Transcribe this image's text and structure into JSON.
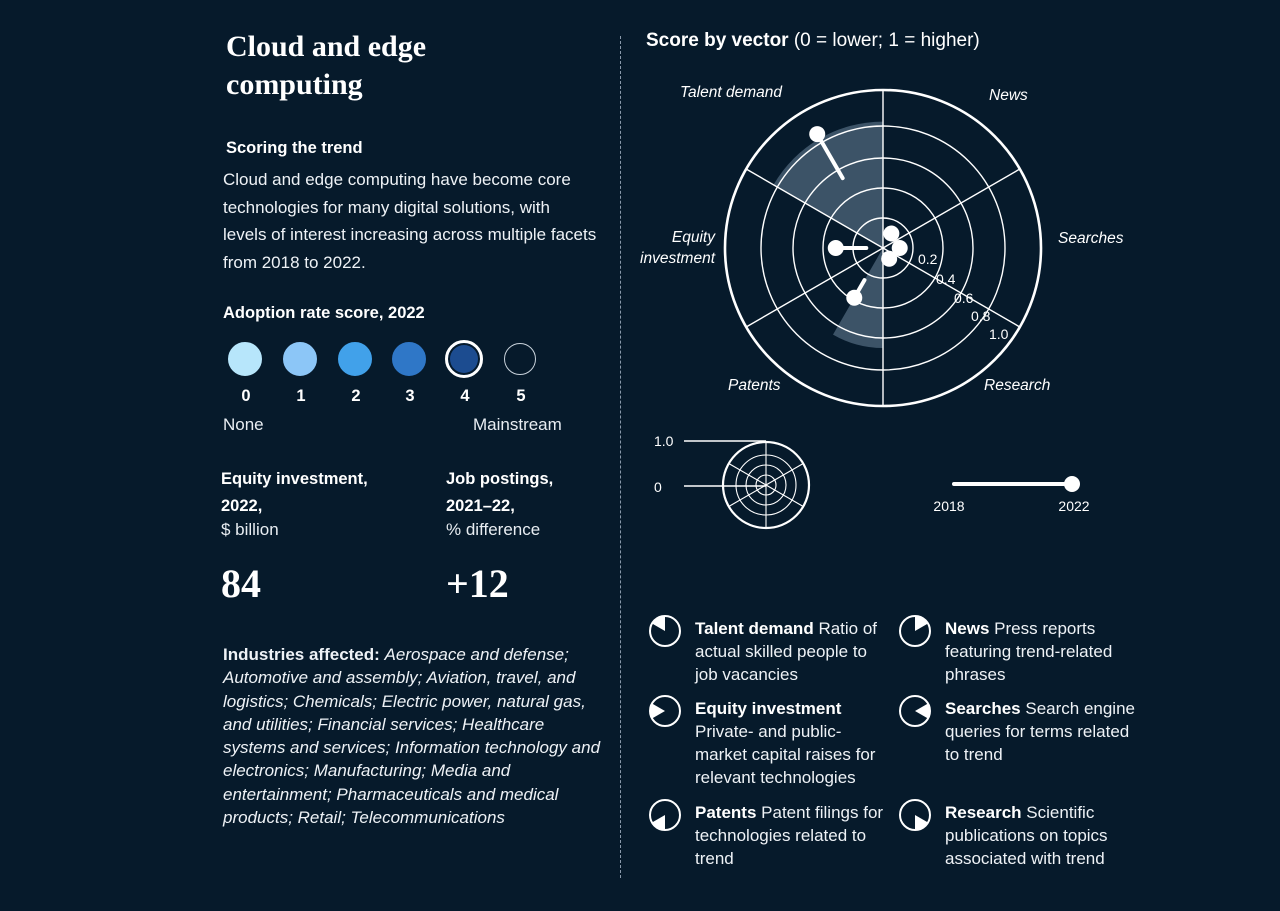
{
  "left": {
    "title": "Cloud and edge computing",
    "scoring_heading": "Scoring the trend",
    "intro": "Cloud and edge computing have become core technologies for many digital solutions, with levels of interest increasing across multiple facets from 2018 to 2022.",
    "adoption": {
      "title": "Adoption rate score, 2022",
      "scores": [
        "0",
        "1",
        "2",
        "3",
        "4",
        "5"
      ],
      "colors": [
        "#b7e6fb",
        "#8cc6f7",
        "#41a1ea",
        "#2f77c7",
        "#1c4c90",
        "transparent"
      ],
      "selected": 4,
      "label_low": "None",
      "label_high": "Mainstream"
    },
    "equity": {
      "title_line1": "Equity investment,",
      "title_line2": "2022,",
      "unit": "$ billion",
      "value": "84"
    },
    "jobs": {
      "title_line1": "Job postings,",
      "title_line2": "2021–22,",
      "unit": "% difference",
      "value": "+12"
    },
    "industries": {
      "label": "Industries affected:",
      "text": "Aerospace and defense; Automotive and assembly; Aviation, travel, and logistics; Chemicals; Electric power, natural gas, and utilities; Financial services; Healthcare systems and services; Information technology and electronics; Manufacturing; Media and entertainment; Pharmaceuticals and medical products; Retail; Telecommunications"
    }
  },
  "chart_data": {
    "type": "radar",
    "title": "Score by vector",
    "title_note": "(0 = lower; 1 = higher)",
    "axes": [
      "Talent demand",
      "News",
      "Searches",
      "Research",
      "Patents",
      "Equity investment"
    ],
    "axis_labels_display": {
      "talent": "Talent demand",
      "news": "News",
      "searches": "Searches",
      "research": "Research",
      "patents": "Patents",
      "equity_l1": "Equity",
      "equity_l2": "investment"
    },
    "ring_labels": [
      "0.2",
      "0.4",
      "0.6",
      "0.8",
      "1.0"
    ],
    "range": [
      0,
      1
    ],
    "series": [
      {
        "name": "2018",
        "values": [
          0.5,
          0.04,
          0.04,
          0.03,
          0.2,
          0.06
        ]
      },
      {
        "name": "2022",
        "values": [
          0.85,
          0.06,
          0.06,
          0.03,
          0.34,
          0.27
        ]
      }
    ],
    "highlighted_sector": "Talent demand",
    "highlight_value": 1.0,
    "key": {
      "scale_max": "1.0",
      "scale_min": "0",
      "year_start": "2018",
      "year_end": "2022"
    }
  },
  "legend": [
    {
      "name": "Talent demand",
      "desc": "Ratio of actual skilled people to job vacancies"
    },
    {
      "name": "News",
      "desc": "Press reports featuring trend-related phrases"
    },
    {
      "name": "Equity investment",
      "desc": "Private- and public-market capital raises for relevant technologies"
    },
    {
      "name": "Searches",
      "desc": "Search engine queries for terms related to trend"
    },
    {
      "name": "Patents",
      "desc": "Patent filings for technologies related to trend"
    },
    {
      "name": "Research",
      "desc": "Scientific publications on topics associated with trend"
    }
  ]
}
